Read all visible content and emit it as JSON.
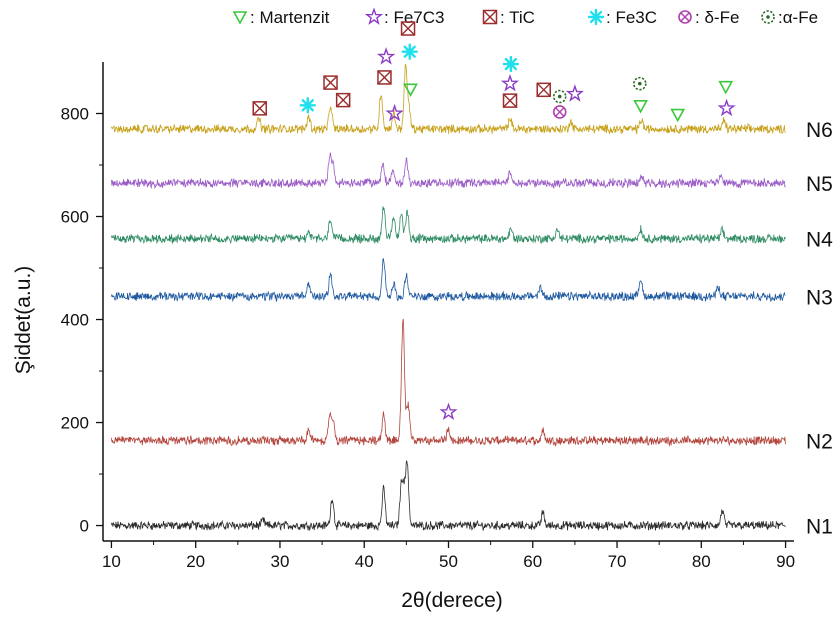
{
  "chart_data": {
    "type": "line",
    "xlabel": "2θ(derece)",
    "ylabel": "Şiddet(a.u.)",
    "xlim": [
      9,
      91
    ],
    "ylim": [
      -30,
      900
    ],
    "xticks": [
      10,
      20,
      30,
      40,
      50,
      60,
      70,
      80,
      90
    ],
    "yticks": [
      0,
      200,
      400,
      600,
      800
    ],
    "grid": false,
    "legend_position": "top",
    "legend": [
      {
        "marker": "martenzit",
        "label": ": Martenzit",
        "color": "#3cc83c"
      },
      {
        "marker": "fe7c3",
        "label": ": Fe7C3",
        "color": "#8a3cc8"
      },
      {
        "marker": "tic",
        "label": ": TiC",
        "color": "#9b2d2d"
      },
      {
        "marker": "fe3c",
        "label": ": Fe3C",
        "color": "#20e0ee"
      },
      {
        "marker": "delta-fe",
        "label": ": δ-Fe",
        "color": "#b040b0"
      },
      {
        "marker": "alpha-fe",
        "label": ":α-Fe",
        "color": "#2a6a2a"
      }
    ],
    "series": [
      {
        "name": "N1",
        "color": "#2b2b2b",
        "baseline": 0,
        "peaks": [
          [
            28,
            10
          ],
          [
            36.2,
            55
          ],
          [
            42.3,
            70
          ],
          [
            44.4,
            70
          ],
          [
            44.7,
            60
          ],
          [
            45.1,
            120
          ],
          [
            61.2,
            25
          ],
          [
            82.5,
            30
          ]
        ]
      },
      {
        "name": "N2",
        "color": "#b3443c",
        "baseline": 165,
        "peaks": [
          [
            33.4,
            20
          ],
          [
            35.9,
            45
          ],
          [
            36.3,
            40
          ],
          [
            42.3,
            50
          ],
          [
            44.6,
            235
          ],
          [
            45.2,
            70
          ],
          [
            50.0,
            25
          ],
          [
            61.2,
            20
          ]
        ]
      },
      {
        "name": "N3",
        "color": "#1f5aa0",
        "baseline": 445,
        "peaks": [
          [
            33.4,
            25
          ],
          [
            36.0,
            45
          ],
          [
            42.3,
            70
          ],
          [
            43.5,
            25
          ],
          [
            45.0,
            45
          ],
          [
            60.9,
            18
          ],
          [
            72.8,
            35
          ],
          [
            82.0,
            18
          ]
        ]
      },
      {
        "name": "N4",
        "color": "#2e8b62",
        "baseline": 557,
        "peaks": [
          [
            33.4,
            15
          ],
          [
            36.0,
            40
          ],
          [
            42.3,
            65
          ],
          [
            43.5,
            40
          ],
          [
            44.4,
            45
          ],
          [
            45.1,
            55
          ],
          [
            57.4,
            18
          ],
          [
            62.9,
            18
          ],
          [
            72.8,
            20
          ],
          [
            82.5,
            15
          ]
        ]
      },
      {
        "name": "N5",
        "color": "#9a5cc6",
        "baseline": 665,
        "peaks": [
          [
            35.9,
            50
          ],
          [
            36.3,
            35
          ],
          [
            42.2,
            35
          ],
          [
            43.4,
            25
          ],
          [
            45.0,
            45
          ],
          [
            57.3,
            20
          ],
          [
            72.9,
            15
          ],
          [
            82.3,
            12
          ]
        ]
      },
      {
        "name": "N6",
        "color": "#c7a11a",
        "baseline": 770,
        "peaks": [
          [
            27.5,
            20
          ],
          [
            33.4,
            25
          ],
          [
            36.0,
            45
          ],
          [
            42.0,
            70
          ],
          [
            43.5,
            30
          ],
          [
            44.9,
            120
          ],
          [
            45.3,
            40
          ],
          [
            57.3,
            20
          ],
          [
            64.5,
            15
          ],
          [
            72.9,
            18
          ],
          [
            82.7,
            15
          ]
        ]
      }
    ],
    "annotations": [
      {
        "marker": "martenzit",
        "x": 45.5,
        "y": 847
      },
      {
        "marker": "martenzit",
        "x": 72.8,
        "y": 815
      },
      {
        "marker": "martenzit",
        "x": 77.2,
        "y": 798
      },
      {
        "marker": "martenzit",
        "x": 82.9,
        "y": 852
      },
      {
        "marker": "fe7c3",
        "x": 42.6,
        "y": 910
      },
      {
        "marker": "fe7c3",
        "x": 43.6,
        "y": 800
      },
      {
        "marker": "fe7c3",
        "x": 57.3,
        "y": 858
      },
      {
        "marker": "fe7c3",
        "x": 65.0,
        "y": 838
      },
      {
        "marker": "fe7c3",
        "x": 83.0,
        "y": 810
      },
      {
        "marker": "fe7c3",
        "x": 50.0,
        "y": 220
      },
      {
        "marker": "tic",
        "x": 27.6,
        "y": 810
      },
      {
        "marker": "tic",
        "x": 36.0,
        "y": 860
      },
      {
        "marker": "tic",
        "x": 37.5,
        "y": 826
      },
      {
        "marker": "tic",
        "x": 42.4,
        "y": 870
      },
      {
        "marker": "tic",
        "x": 45.2,
        "y": 965
      },
      {
        "marker": "tic",
        "x": 57.3,
        "y": 825
      },
      {
        "marker": "tic",
        "x": 61.3,
        "y": 846
      },
      {
        "marker": "fe3c",
        "x": 33.3,
        "y": 816
      },
      {
        "marker": "fe3c",
        "x": 45.4,
        "y": 920
      },
      {
        "marker": "fe3c",
        "x": 57.4,
        "y": 896
      },
      {
        "marker": "delta-fe",
        "x": 63.2,
        "y": 803
      },
      {
        "marker": "alpha-fe",
        "x": 63.2,
        "y": 833
      },
      {
        "marker": "alpha-fe",
        "x": 72.7,
        "y": 858
      }
    ]
  }
}
